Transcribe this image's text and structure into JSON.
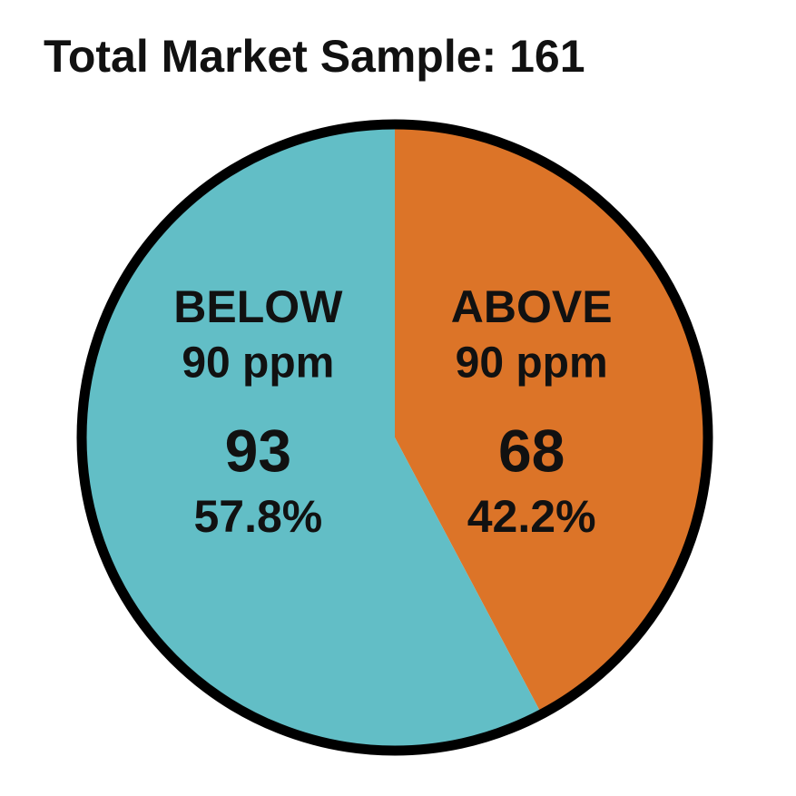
{
  "chart_data": {
    "type": "pie",
    "title": "Total Market Sample: 161",
    "categories": [
      "BELOW",
      "ABOVE"
    ],
    "sublabels": [
      "90 ppm",
      "90 ppm"
    ],
    "values": [
      93,
      68
    ],
    "percent_labels": [
      "57.8%",
      "42.2%"
    ],
    "colors": [
      "#62bec6",
      "#dc7428"
    ]
  }
}
